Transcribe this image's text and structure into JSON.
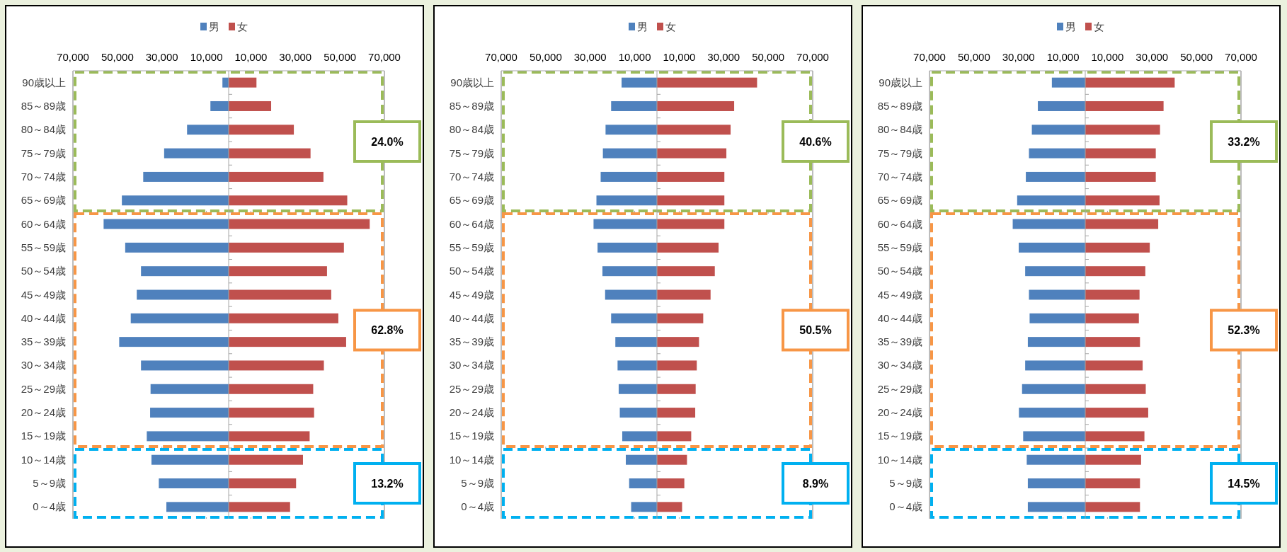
{
  "chart_data": [
    {
      "type": "bar",
      "orientation": "horizontal",
      "stacked": true,
      "legend": "top",
      "grid": "x",
      "categories": [
        "90歳以上",
        "85～89歳",
        "80～84歳",
        "75～79歳",
        "70～74歳",
        "65～69歳",
        "60～64歳",
        "55～59歳",
        "50～54歳",
        "45～49歳",
        "40～44歳",
        "35～39歳",
        "30～34歳",
        "25～29歳",
        "20～24歳",
        "15～19歳",
        "10～14歳",
        "5～9歳",
        "0～4歳"
      ],
      "series": [
        {
          "name": "男",
          "color": "#4f81bd",
          "values": [
            -2800,
            -8200,
            -18700,
            -29000,
            -38400,
            -48000,
            -56200,
            -46500,
            -39400,
            -41300,
            -44000,
            -49200,
            -39400,
            -35100,
            -35300,
            -36800,
            -34700,
            -31400,
            -28000
          ]
        },
        {
          "name": "女",
          "color": "#c0504d",
          "values": [
            12500,
            19100,
            29300,
            36800,
            42600,
            53300,
            63400,
            51800,
            44200,
            46100,
            49300,
            52800,
            42800,
            38000,
            38400,
            36400,
            33400,
            30300,
            27600
          ]
        }
      ],
      "xlim": [
        -70000,
        70000
      ],
      "xticks": [
        {
          "value": -70000,
          "label": "70,000"
        },
        {
          "value": -50000,
          "label": "50,000"
        },
        {
          "value": -30000,
          "label": "30,000"
        },
        {
          "value": -10000,
          "label": "10,000"
        },
        {
          "value": 10000,
          "label": "10,000"
        },
        {
          "value": 30000,
          "label": "30,000"
        },
        {
          "value": 50000,
          "label": "50,000"
        },
        {
          "value": 70000,
          "label": "70,000"
        }
      ],
      "bands": [
        {
          "axis": "y",
          "from": "65～69歳",
          "to": "90歳以上",
          "label": "24.0%",
          "color": "#9bbb59"
        },
        {
          "axis": "y",
          "from": "15～19歳",
          "to": "60～64歳",
          "label": "62.8%",
          "color": "#f79646"
        },
        {
          "axis": "y",
          "from": "0～4歳",
          "to": "10～14歳",
          "label": "13.2%",
          "color": "#00b0f0"
        }
      ]
    },
    {
      "type": "bar",
      "orientation": "horizontal",
      "stacked": true,
      "legend": "top",
      "grid": "x",
      "categories": [
        "90歳以上",
        "85～89歳",
        "80～84歳",
        "75～79歳",
        "70～74歳",
        "65～69歳",
        "60～64歳",
        "55～59歳",
        "50～54歳",
        "45～49歳",
        "40～44歳",
        "35～39歳",
        "30～34歳",
        "25～29歳",
        "20～24歳",
        "15～19歳",
        "10～14歳",
        "5～9歳",
        "0～4歳"
      ],
      "series": [
        {
          "name": "男",
          "color": "#4f81bd",
          "values": [
            -15900,
            -20600,
            -23100,
            -24300,
            -25300,
            -27200,
            -28500,
            -26700,
            -24500,
            -23300,
            -20600,
            -18700,
            -17700,
            -17200,
            -16700,
            -15600,
            -14000,
            -12500,
            -11600
          ]
        },
        {
          "name": "女",
          "color": "#c0504d",
          "values": [
            45000,
            34700,
            33100,
            31200,
            30300,
            30300,
            30300,
            27700,
            26000,
            24100,
            20800,
            18900,
            17900,
            17400,
            17200,
            15400,
            13500,
            12300,
            11300
          ]
        }
      ],
      "xlim": [
        -70000,
        70000
      ],
      "xticks": [
        {
          "value": -70000,
          "label": "70,000"
        },
        {
          "value": -50000,
          "label": "50,000"
        },
        {
          "value": -30000,
          "label": "30,000"
        },
        {
          "value": -10000,
          "label": "10,000"
        },
        {
          "value": 10000,
          "label": "10,000"
        },
        {
          "value": 30000,
          "label": "30,000"
        },
        {
          "value": 50000,
          "label": "50,000"
        },
        {
          "value": 70000,
          "label": "70,000"
        }
      ],
      "bands": [
        {
          "axis": "y",
          "from": "65～69歳",
          "to": "90歳以上",
          "label": "40.6%",
          "color": "#9bbb59"
        },
        {
          "axis": "y",
          "from": "15～19歳",
          "to": "60～64歳",
          "label": "50.5%",
          "color": "#f79646"
        },
        {
          "axis": "y",
          "from": "0～4歳",
          "to": "10～14歳",
          "label": "8.9%",
          "color": "#00b0f0"
        }
      ]
    },
    {
      "type": "bar",
      "orientation": "horizontal",
      "stacked": true,
      "legend": "top",
      "grid": "x",
      "categories": [
        "90歳以上",
        "85～89歳",
        "80～84歳",
        "75～79歳",
        "70～74歳",
        "65～69歳",
        "60～64歳",
        "55～59歳",
        "50～54歳",
        "45～49歳",
        "40～44歳",
        "35～39歳",
        "30～34歳",
        "25～29歳",
        "20～24歳",
        "15～19歳",
        "10～14歳",
        "5～9歳",
        "0～4歳"
      ],
      "series": [
        {
          "name": "男",
          "color": "#4f81bd",
          "values": [
            -15000,
            -21300,
            -24000,
            -25300,
            -26700,
            -30600,
            -32600,
            -29900,
            -27000,
            -25300,
            -25000,
            -25800,
            -27000,
            -28400,
            -29800,
            -27900,
            -26300,
            -25800,
            -25800
          ]
        },
        {
          "name": "女",
          "color": "#c0504d",
          "values": [
            40200,
            35200,
            33600,
            31700,
            31700,
            33400,
            32800,
            29000,
            27000,
            24400,
            24100,
            24600,
            25800,
            27200,
            28300,
            26600,
            25100,
            24600,
            24600
          ]
        }
      ],
      "xlim": [
        -70000,
        70000
      ],
      "xticks": [
        {
          "value": -70000,
          "label": "70,000"
        },
        {
          "value": -50000,
          "label": "50,000"
        },
        {
          "value": -30000,
          "label": "30,000"
        },
        {
          "value": -10000,
          "label": "10,000"
        },
        {
          "value": 10000,
          "label": "10,000"
        },
        {
          "value": 30000,
          "label": "30,000"
        },
        {
          "value": 50000,
          "label": "50,000"
        },
        {
          "value": 70000,
          "label": "70,000"
        }
      ],
      "bands": [
        {
          "axis": "y",
          "from": "65～69歳",
          "to": "90歳以上",
          "label": "33.2%",
          "color": "#9bbb59"
        },
        {
          "axis": "y",
          "from": "15～19歳",
          "to": "60～64歳",
          "label": "52.3%",
          "color": "#f79646"
        },
        {
          "axis": "y",
          "from": "0～4歳",
          "to": "10～14歳",
          "label": "14.5%",
          "color": "#00b0f0"
        }
      ]
    }
  ]
}
